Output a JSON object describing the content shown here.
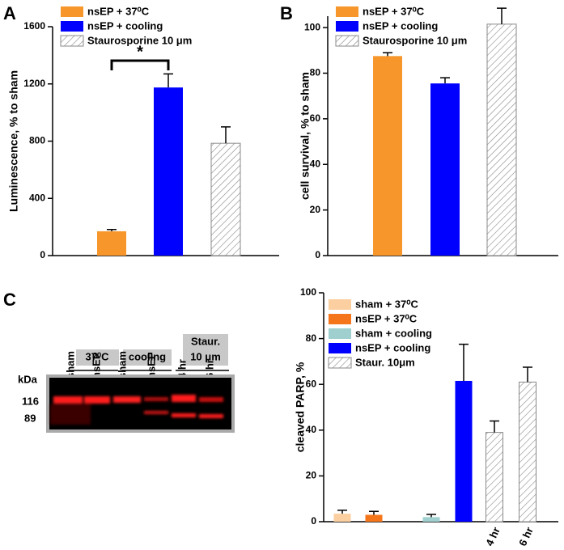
{
  "chart_data": [
    {
      "type": "bar",
      "panel_label": "A",
      "y_label": "Luminescence, % to sham",
      "ylim": [
        0,
        1600
      ],
      "yticks": [
        0,
        400,
        800,
        1200,
        1600
      ],
      "annotation": "*",
      "series": [
        {
          "name": "nsEP + 37⁰C",
          "color": "#f7962b",
          "values": [
            170
          ],
          "errors": [
            12
          ]
        },
        {
          "name": "nsEP + cooling",
          "color": "#0000ff",
          "values": [
            1175
          ],
          "errors": [
            95
          ]
        },
        {
          "name": "Staurosporine 10 μm",
          "color": "#ffffff",
          "hatch": true,
          "values": [
            785
          ],
          "errors": [
            115
          ]
        }
      ]
    },
    {
      "type": "bar",
      "panel_label": "B",
      "y_label": "cell survival, % to sham",
      "ylim": [
        0,
        105
      ],
      "yticks": [
        0,
        20,
        40,
        60,
        80,
        100
      ],
      "series": [
        {
          "name": "nsEP + 37⁰C",
          "color": "#f7962b",
          "values": [
            87.5
          ],
          "errors": [
            1.5
          ]
        },
        {
          "name": "nsEP + cooling",
          "color": "#0000ff",
          "values": [
            75.5
          ],
          "errors": [
            2.5
          ]
        },
        {
          "name": "Staurosporine 10 μm",
          "color": "#ffffff",
          "hatch": true,
          "values": [
            101.5
          ],
          "errors": [
            7
          ]
        }
      ]
    },
    {
      "type": "bar",
      "y_label": "cleaved PARP, %",
      "ylim": [
        0,
        100
      ],
      "yticks": [
        0,
        20,
        40,
        60,
        80,
        100
      ],
      "categories": [
        null,
        null,
        null,
        null,
        "4 hr",
        "6 hr"
      ],
      "series": [
        {
          "name": "sham + 37⁰C",
          "color": "#fbcf9f",
          "values": [
            3.5,
            null,
            null,
            null,
            null,
            null
          ],
          "errors": [
            1.5,
            null,
            null,
            null,
            null,
            null
          ]
        },
        {
          "name": "nsEP + 37⁰C",
          "color": "#f5761a",
          "values": [
            null,
            3,
            null,
            null,
            null,
            null
          ],
          "errors": [
            null,
            1.5,
            null,
            null,
            null,
            null
          ]
        },
        {
          "name": "sham + cooling",
          "color": "#9fcfcf",
          "values": [
            null,
            null,
            2,
            null,
            null,
            null
          ],
          "errors": [
            null,
            null,
            1.2,
            null,
            null,
            null
          ]
        },
        {
          "name": "nsEP + cooling",
          "color": "#0000ff",
          "values": [
            null,
            null,
            null,
            61.5,
            null,
            null
          ],
          "errors": [
            null,
            null,
            null,
            16,
            null,
            null
          ]
        },
        {
          "name": "Staur. 10μm",
          "color": "#ffffff",
          "hatch": true,
          "values": [
            null,
            null,
            null,
            null,
            39,
            61
          ],
          "errors": [
            null,
            null,
            null,
            null,
            5,
            6.5
          ]
        }
      ]
    }
  ],
  "blot": {
    "panel_label": "C",
    "groups": [
      {
        "lines": [
          "37⁰C"
        ]
      },
      {
        "lines": [
          "cooling"
        ]
      },
      {
        "lines": [
          "Staur.",
          "10 μm"
        ]
      }
    ],
    "lanes": [
      "sham",
      "nsEP",
      "sham",
      "nsEP",
      "4 hr",
      "6 hr"
    ],
    "unit": "kDa",
    "markers": [
      "116",
      "89"
    ]
  }
}
